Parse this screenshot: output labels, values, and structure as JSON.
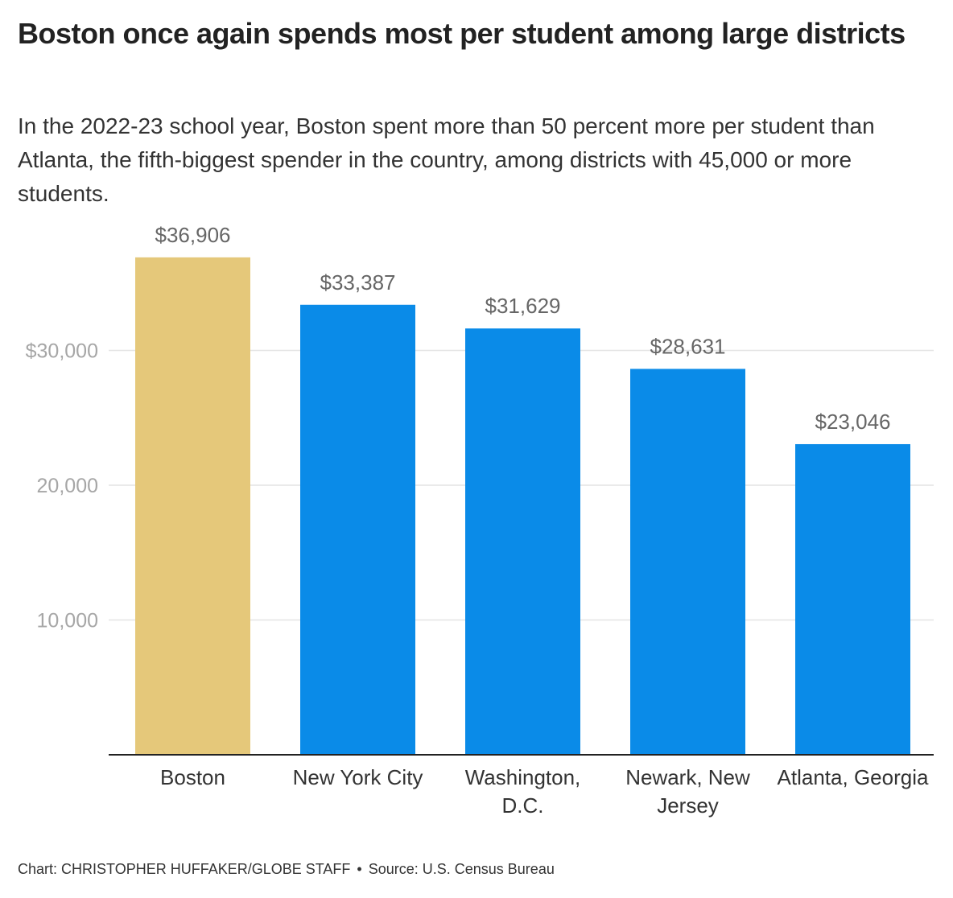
{
  "title": "Boston once again spends most per student among large districts",
  "subtitle": "In the 2022-23 school year, Boston spent more than 50 percent more per student than Atlanta, the fifth-biggest spender in the country, among districts with 45,000 or more students.",
  "chart_data": {
    "type": "bar",
    "categories": [
      [
        "Boston"
      ],
      [
        "New York City"
      ],
      [
        "Washington,",
        "D.C."
      ],
      [
        "Newark, New",
        "Jersey"
      ],
      [
        "Atlanta, Georgia"
      ]
    ],
    "values": [
      36906,
      33387,
      31629,
      28631,
      23046
    ],
    "value_labels": [
      "$36,906",
      "$33,387",
      "$31,629",
      "$28,631",
      "$23,046"
    ],
    "bar_colors": [
      "#e5c87a",
      "#0a8be8",
      "#0a8be8",
      "#0a8be8",
      "#0a8be8"
    ],
    "yticks": [
      10000,
      20000,
      30000
    ],
    "ytick_labels": [
      "10,000",
      "20,000",
      "$30,000"
    ],
    "ylim": [
      0,
      40000
    ],
    "grid": true,
    "xlabel": "",
    "ylabel": ""
  },
  "footer": {
    "credit": "Chart: CHRISTOPHER HUFFAKER/GLOBE STAFF",
    "separator": "•",
    "source": "Source: U.S. Census Bureau"
  }
}
